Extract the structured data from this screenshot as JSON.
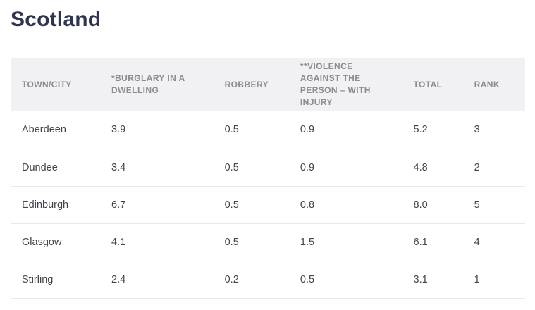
{
  "page": {
    "title": "Scotland"
  },
  "colors": {
    "title_text": "#2f3551",
    "header_background": "#f1f1f3",
    "header_text": "#8a8b93",
    "body_text": "#43444b",
    "row_divider": "#e9e9ed",
    "page_background": "#ffffff"
  },
  "table": {
    "columns": [
      {
        "key": "town",
        "label": "TOWN/CITY"
      },
      {
        "key": "burglary",
        "label": "*BURGLARY IN A DWELLING"
      },
      {
        "key": "robbery",
        "label": "ROBBERY"
      },
      {
        "key": "violence",
        "label": "**VIOLENCE AGAINST THE PERSON – WITH INJURY"
      },
      {
        "key": "total",
        "label": "TOTAL"
      },
      {
        "key": "rank",
        "label": "RANK"
      }
    ],
    "rows": [
      {
        "town": "Aberdeen",
        "burglary": "3.9",
        "robbery": "0.5",
        "violence": "0.9",
        "total": "5.2",
        "rank": "3"
      },
      {
        "town": "Dundee",
        "burglary": "3.4",
        "robbery": "0.5",
        "violence": "0.9",
        "total": "4.8",
        "rank": "2"
      },
      {
        "town": "Edinburgh",
        "burglary": "6.7",
        "robbery": "0.5",
        "violence": "0.8",
        "total": "8.0",
        "rank": "5"
      },
      {
        "town": "Glasgow",
        "burglary": "4.1",
        "robbery": "0.5",
        "violence": "1.5",
        "total": "6.1",
        "rank": "4"
      },
      {
        "town": "Stirling",
        "burglary": "2.4",
        "robbery": "0.2",
        "violence": "0.5",
        "total": "3.1",
        "rank": "1"
      }
    ]
  },
  "chart_data": {
    "type": "table",
    "title": "Scotland",
    "categories": [
      "Aberdeen",
      "Dundee",
      "Edinburgh",
      "Glasgow",
      "Stirling"
    ],
    "series": [
      {
        "name": "*Burglary in a dwelling",
        "values": [
          3.9,
          3.4,
          6.7,
          4.1,
          2.4
        ]
      },
      {
        "name": "Robbery",
        "values": [
          0.5,
          0.5,
          0.5,
          0.5,
          0.2
        ]
      },
      {
        "name": "**Violence against the person – with injury",
        "values": [
          0.9,
          0.9,
          0.8,
          1.5,
          0.5
        ]
      },
      {
        "name": "Total",
        "values": [
          5.2,
          4.8,
          8.0,
          6.1,
          3.1
        ]
      },
      {
        "name": "Rank",
        "values": [
          3,
          2,
          5,
          4,
          1
        ]
      }
    ]
  }
}
